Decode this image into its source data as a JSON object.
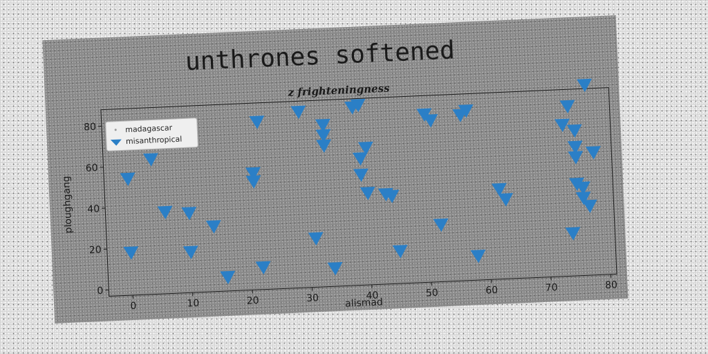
{
  "chart_data": {
    "type": "scatter",
    "title": "unthrones softened",
    "subtitle": "z frighteningness",
    "xlabel": "alismad",
    "ylabel": "ploughgang",
    "xlim": [
      -4,
      81
    ],
    "ylim": [
      -3,
      88
    ],
    "xticks": [
      0,
      10,
      20,
      30,
      40,
      50,
      60,
      70,
      80
    ],
    "yticks": [
      0,
      20,
      40,
      60,
      80
    ],
    "grid": false,
    "legend_position": "top-left",
    "series": [
      {
        "name": "madagascar",
        "marker": "dot",
        "color": "#9a9a9a",
        "points": []
      },
      {
        "name": "misanthropical",
        "marker": "triangle-down",
        "color": "#2b7fc6",
        "points": [
          [
            0,
            54
          ],
          [
            0,
            18
          ],
          [
            4,
            63
          ],
          [
            6,
            37
          ],
          [
            10,
            36
          ],
          [
            10,
            17
          ],
          [
            14,
            29
          ],
          [
            16,
            4
          ],
          [
            21,
            54
          ],
          [
            21,
            50
          ],
          [
            22,
            79
          ],
          [
            22,
            8
          ],
          [
            29,
            83
          ],
          [
            31,
            21
          ],
          [
            33,
            76
          ],
          [
            33,
            71
          ],
          [
            33,
            66
          ],
          [
            34,
            6
          ],
          [
            38,
            84
          ],
          [
            39,
            85
          ],
          [
            39,
            59
          ],
          [
            39,
            51
          ],
          [
            40,
            64
          ],
          [
            40,
            42
          ],
          [
            43,
            41
          ],
          [
            44,
            40
          ],
          [
            45,
            13
          ],
          [
            50,
            79
          ],
          [
            51,
            76
          ],
          [
            52,
            25
          ],
          [
            56,
            78
          ],
          [
            57,
            80
          ],
          [
            58,
            9
          ],
          [
            62,
            41
          ],
          [
            63,
            36
          ],
          [
            73,
            71
          ],
          [
            74,
            80
          ],
          [
            74,
            18
          ],
          [
            75,
            68
          ],
          [
            75,
            60
          ],
          [
            75,
            55
          ],
          [
            75,
            42
          ],
          [
            76,
            40
          ],
          [
            76,
            35
          ],
          [
            77,
            90
          ],
          [
            77,
            31
          ],
          [
            78,
            57
          ]
        ]
      }
    ]
  }
}
